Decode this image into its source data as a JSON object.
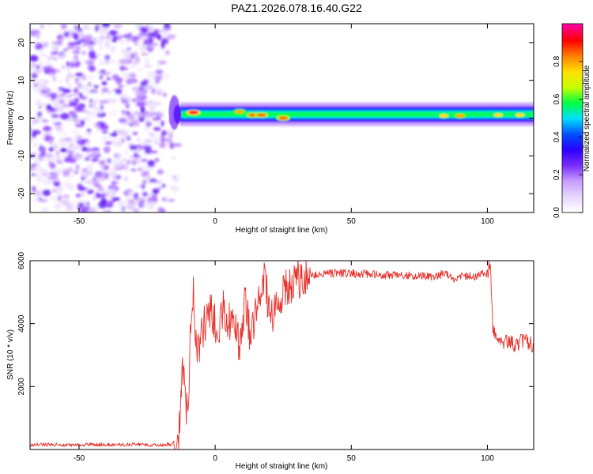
{
  "figure_title": "PAZ1.2026.078.16.40.G22",
  "chart_data": [
    {
      "type": "heatmap",
      "xlabel": "Height of straight line (km)",
      "ylabel": "Frequency (Hz)",
      "xlim": [
        -68,
        117
      ],
      "ylim": [
        -25,
        25
      ],
      "xticks": [
        -50,
        0,
        50,
        100
      ],
      "yticks": [
        -20,
        -10,
        0,
        10,
        20
      ],
      "xtick_labels": [
        "-50",
        "0",
        "50",
        "100"
      ],
      "ytick_labels": [
        "-20",
        "-10",
        "0",
        "10",
        "20"
      ],
      "colorbar": {
        "label": "Normalized spectral amplitude",
        "range": [
          0,
          1
        ],
        "ticks": [
          0.0,
          0.2,
          0.4,
          0.6,
          0.8
        ],
        "tick_labels": [
          "0.0",
          "0.2",
          "0.4",
          "0.6",
          "0.8"
        ],
        "colormap": [
          "#ffffff",
          "#e6d6ff",
          "#c69cff",
          "#7a2cff",
          "#2a00ff",
          "#0050ff",
          "#00e0ff",
          "#00ff40",
          "#c8ff00",
          "#ffe000",
          "#ff8000",
          "#ff0000",
          "#ff00a0"
        ]
      },
      "noise_region": {
        "x_start": -68,
        "x_end": -15,
        "level": 0.1
      },
      "signal_band": {
        "x_start": -13,
        "x_end": 117,
        "center_freq": 1.0,
        "half_width": 2.0,
        "level": 0.55
      },
      "hotspots": [
        {
          "x": -8,
          "f": 1.5,
          "level": 0.95
        },
        {
          "x": 9,
          "f": 1.7,
          "level": 0.8
        },
        {
          "x": 14,
          "f": 0.8,
          "level": 0.85
        },
        {
          "x": 17,
          "f": 0.8,
          "level": 0.85
        },
        {
          "x": 25,
          "f": 0.0,
          "level": 0.85
        },
        {
          "x": 84,
          "f": 0.6,
          "level": 0.75
        },
        {
          "x": 90,
          "f": 0.6,
          "level": 0.8
        },
        {
          "x": 104,
          "f": 0.8,
          "level": 0.75
        },
        {
          "x": 112,
          "f": 0.8,
          "level": 0.75
        }
      ]
    },
    {
      "type": "line",
      "xlabel": "Height of straight line (km)",
      "ylabel": "SNR (10 * v/v)",
      "xlim": [
        -68,
        117
      ],
      "ylim": [
        0,
        6000
      ],
      "xticks": [
        -50,
        0,
        50,
        100
      ],
      "yticks": [
        2000,
        4000,
        6000
      ],
      "xtick_labels": [
        "-50",
        "0",
        "50",
        "100"
      ],
      "ytick_labels": [
        "2000",
        "4000",
        "6000"
      ],
      "series": [
        {
          "color": "#e8302a",
          "x": [
            -68,
            -55,
            -40,
            -25,
            -16,
            -14,
            -13,
            -12,
            -11,
            -10,
            -9,
            -8,
            -7,
            -6,
            -5,
            -3,
            -1,
            1,
            3,
            5,
            7,
            9,
            11,
            13,
            15,
            18,
            20,
            22,
            25,
            28,
            30,
            33,
            36,
            40,
            50,
            60,
            70,
            80,
            85,
            88,
            90,
            95,
            100,
            101,
            102,
            103,
            105,
            108,
            110,
            113,
            117
          ],
          "y": [
            150,
            150,
            160,
            150,
            160,
            300,
            700,
            2800,
            1500,
            1200,
            4000,
            5000,
            3500,
            3200,
            3700,
            4200,
            4400,
            3500,
            4600,
            4100,
            3900,
            3300,
            4700,
            3500,
            4400,
            5600,
            4200,
            4500,
            5000,
            5300,
            5400,
            5500,
            5550,
            5600,
            5600,
            5550,
            5550,
            5500,
            5600,
            5400,
            5500,
            5500,
            5600,
            6000,
            3800,
            3600,
            3400,
            3500,
            3300,
            3500,
            3300
          ]
        }
      ]
    }
  ]
}
